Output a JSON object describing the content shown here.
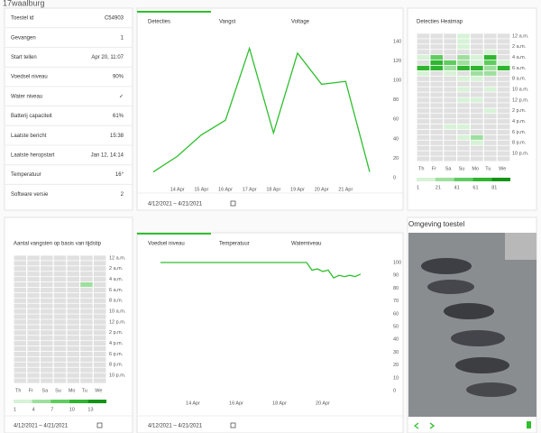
{
  "header": {
    "title": "17waalburg"
  },
  "device_info": {
    "rows": [
      [
        "Toestel id",
        "C54903"
      ],
      [
        "Gevangen",
        "1"
      ],
      [
        "Start tellen",
        "Apr 20, 11:07"
      ],
      [
        "Voedsel niveau",
        "90%"
      ],
      [
        "Water niveau",
        "✓"
      ],
      [
        "Batterij capaciteit",
        "61%"
      ],
      [
        "Laatste bericht",
        "15:38"
      ],
      [
        "Laatste heropstart",
        "Jan 12, 14:14"
      ],
      [
        "Temperatuur",
        "16°"
      ],
      [
        "Software versie",
        "2"
      ]
    ]
  },
  "chart_data": [
    {
      "type": "line",
      "tabs": [
        "Detecties",
        "Vangst",
        "Voltage"
      ],
      "color": "#2ebf2e",
      "categories": [
        null,
        "14 Apr",
        "15 Apr",
        "16 Apr",
        "17 Apr",
        "18 Apr",
        "19 Apr",
        "20 Apr",
        "21 Apr",
        null
      ],
      "values": [
        6,
        22,
        44,
        59,
        133,
        46,
        128,
        96,
        99,
        6
      ],
      "ylim": [
        0,
        140
      ],
      "yticks": [
        0,
        20,
        40,
        60,
        80,
        100,
        120,
        140
      ],
      "date_range": "4/12/2021 – 4/21/2021"
    },
    {
      "type": "heatmap",
      "title": "Detecties Heatmap",
      "x": [
        "Th",
        "Fr",
        "Sa",
        "Su",
        "Mo",
        "Tu",
        "We"
      ],
      "y": [
        "12 a.m.",
        null,
        "2 a.m.",
        null,
        "4 a.m.",
        null,
        "6 a.m.",
        null,
        "8 a.m.",
        null,
        "10 a.m.",
        null,
        "12 p.m.",
        null,
        "2 p.m.",
        null,
        "4 p.m.",
        null,
        "6 p.m.",
        null,
        "8 p.m.",
        null,
        "10 p.m.",
        null
      ],
      "values": [
        [
          0,
          0,
          0,
          15,
          0,
          0,
          0
        ],
        [
          0,
          0,
          0,
          10,
          0,
          0,
          0
        ],
        [
          0,
          0,
          0,
          12,
          0,
          0,
          0
        ],
        [
          0,
          0,
          0,
          0,
          0,
          8,
          0
        ],
        [
          5,
          45,
          0,
          30,
          5,
          65,
          0
        ],
        [
          0,
          70,
          50,
          25,
          10,
          45,
          5
        ],
        [
          65,
          70,
          30,
          70,
          62,
          30,
          70
        ],
        [
          20,
          0,
          5,
          0,
          25,
          30,
          0
        ],
        [
          0,
          0,
          0,
          10,
          20,
          0,
          0
        ],
        [
          0,
          0,
          0,
          0,
          0,
          0,
          0
        ],
        [
          0,
          0,
          0,
          12,
          0,
          15,
          0
        ],
        [
          0,
          0,
          0,
          0,
          0,
          0,
          0
        ],
        [
          0,
          0,
          0,
          10,
          15,
          0,
          0
        ],
        [
          0,
          0,
          0,
          0,
          0,
          0,
          0
        ],
        [
          0,
          0,
          0,
          0,
          0,
          10,
          0
        ],
        [
          0,
          0,
          0,
          0,
          0,
          0,
          0
        ],
        [
          0,
          0,
          0,
          0,
          0,
          0,
          0
        ],
        [
          0,
          0,
          8,
          10,
          0,
          0,
          0
        ],
        [
          0,
          0,
          0,
          0,
          0,
          0,
          0
        ],
        [
          0,
          0,
          0,
          12,
          25,
          0,
          0
        ],
        [
          0,
          0,
          0,
          0,
          8,
          0,
          0
        ],
        [
          0,
          0,
          0,
          0,
          0,
          0,
          0
        ],
        [
          0,
          0,
          0,
          0,
          0,
          0,
          0
        ],
        [
          0,
          0,
          0,
          0,
          0,
          0,
          0
        ]
      ],
      "empty_color": "#e0e0e0",
      "legend": {
        "values": [
          1,
          21,
          41,
          61,
          81
        ],
        "colors": [
          "#d7f2d7",
          "#9edf9e",
          "#5fcc5f",
          "#2fb52f",
          "#149414"
        ]
      }
    },
    {
      "type": "heatmap",
      "title": "Aantal vangsten op basis van tijdstip",
      "x": [
        "Th",
        "Fr",
        "Sa",
        "Su",
        "Mo",
        "Tu",
        "We"
      ],
      "y": [
        "12 a.m.",
        null,
        "2 a.m.",
        null,
        "4 a.m.",
        null,
        "6 a.m.",
        null,
        "8 a.m.",
        null,
        "10 a.m.",
        null,
        "12 p.m.",
        null,
        "2 p.m.",
        null,
        "4 p.m.",
        null,
        "6 p.m.",
        null,
        "8 p.m.",
        null,
        "10 p.m.",
        null
      ],
      "values": [
        [
          0,
          0,
          0,
          0,
          0,
          0,
          0
        ],
        [
          0,
          0,
          0,
          0,
          0,
          0,
          0
        ],
        [
          0,
          0,
          0,
          0,
          0,
          0,
          0
        ],
        [
          0,
          0,
          0,
          0,
          0,
          0,
          0
        ],
        [
          0,
          0,
          0,
          0,
          0,
          0,
          0
        ],
        [
          0,
          0,
          0,
          0,
          0,
          4,
          0
        ],
        [
          0,
          0,
          0,
          0,
          0,
          0,
          0
        ],
        [
          0,
          0,
          0,
          0,
          0,
          0,
          0
        ],
        [
          0,
          0,
          0,
          0,
          0,
          0,
          0
        ],
        [
          0,
          0,
          0,
          0,
          0,
          0,
          0
        ],
        [
          0,
          0,
          0,
          0,
          0,
          0,
          0
        ],
        [
          0,
          0,
          0,
          0,
          0,
          0,
          0
        ],
        [
          0,
          0,
          0,
          0,
          0,
          0,
          0
        ],
        [
          0,
          0,
          0,
          0,
          0,
          0,
          0
        ],
        [
          0,
          0,
          0,
          0,
          0,
          0,
          0
        ],
        [
          0,
          0,
          0,
          0,
          0,
          0,
          0
        ],
        [
          0,
          0,
          0,
          0,
          0,
          0,
          0
        ],
        [
          0,
          0,
          0,
          0,
          0,
          0,
          0
        ],
        [
          0,
          0,
          0,
          0,
          0,
          0,
          0
        ],
        [
          0,
          0,
          0,
          0,
          0,
          0,
          0
        ],
        [
          0,
          0,
          0,
          0,
          0,
          0,
          0
        ],
        [
          0,
          0,
          0,
          0,
          0,
          0,
          0
        ],
        [
          0,
          0,
          0,
          0,
          0,
          0,
          0
        ],
        [
          0,
          0,
          0,
          0,
          0,
          0,
          0
        ]
      ],
      "empty_color": "#e0e0e0",
      "legend": {
        "values": [
          1,
          4,
          7,
          10,
          13
        ],
        "colors": [
          "#d7f2d7",
          "#9edf9e",
          "#5fcc5f",
          "#2fb52f",
          "#149414"
        ]
      },
      "date_range": "4/12/2021 – 4/21/2021"
    },
    {
      "type": "line",
      "tabs": [
        "Voedsel niveau",
        "Temperatuur",
        "Waterniveau"
      ],
      "color": "#2ebf2e",
      "categories": [
        null,
        null,
        null,
        null,
        null,
        null,
        "14 Apr",
        null,
        null,
        null,
        null,
        null,
        null,
        null,
        "16 Apr",
        null,
        null,
        null,
        null,
        null,
        null,
        null,
        "18 Apr",
        null,
        null,
        null,
        null,
        null,
        null,
        null,
        "20 Apr",
        null,
        null,
        null,
        null,
        null,
        null,
        null
      ],
      "values": [
        100,
        100,
        100,
        100,
        100,
        100,
        100,
        100,
        100,
        100,
        100,
        100,
        100,
        100,
        100,
        100,
        100,
        100,
        100,
        100,
        100,
        100,
        100,
        100,
        100,
        100,
        100,
        100,
        94,
        95,
        93,
        94,
        88,
        90,
        89,
        90,
        89,
        91
      ],
      "ylim": [
        0,
        100
      ],
      "yticks": [
        0,
        10,
        20,
        30,
        40,
        50,
        60,
        70,
        80,
        90,
        100
      ],
      "date_range": "4/12/2021 – 4/21/2021"
    }
  ],
  "photo_panel": {
    "title": "Omgeving toestel"
  }
}
